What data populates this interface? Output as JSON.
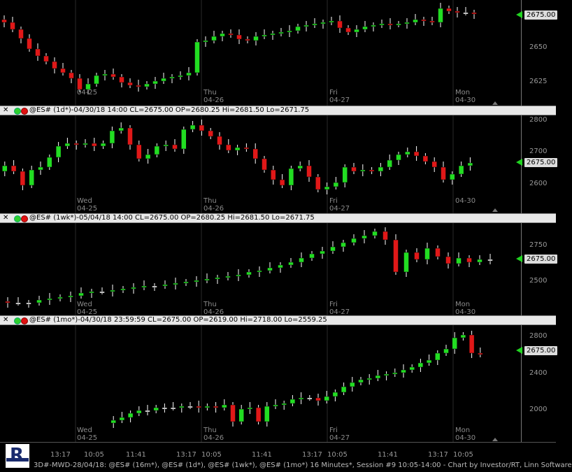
{
  "panes": [
    {
      "id": "p16m",
      "header": "",
      "last_price_label": "2675.00",
      "y_labels": [
        "2650",
        "2625"
      ],
      "date_labels": [
        {
          "day": "",
          "date": "04-25"
        },
        {
          "day": "Thu",
          "date": "04-26"
        },
        {
          "day": "Fri",
          "date": "04-27"
        },
        {
          "day": "Mon",
          "date": "04-30"
        }
      ]
    },
    {
      "id": "p1d",
      "header": "@ES# (1d*)-04/30/18 14:00 CL=2675.00 OP=2680.25 Hi=2681.50 Lo=2671.75",
      "last_price_label": "2675.00",
      "y_labels": [
        "2800",
        "2700",
        "2600"
      ],
      "date_labels": [
        {
          "day": "Wed",
          "date": "04-25"
        },
        {
          "day": "Thu",
          "date": "04-26"
        },
        {
          "day": "Fri",
          "date": "04-27"
        },
        {
          "day": "",
          "date": "04-30"
        }
      ]
    },
    {
      "id": "p1wk",
      "header": "@ES# (1wk*)-05/04/18 14:00 CL=2675.00 OP=2680.25 Hi=2681.50 Lo=2671.75",
      "last_price_label": "2675.00",
      "y_labels": [
        "2750",
        "2500"
      ],
      "date_labels": [
        {
          "day": "Wed",
          "date": "04-25"
        },
        {
          "day": "Thu",
          "date": "04-26"
        },
        {
          "day": "Fri",
          "date": "04-27"
        },
        {
          "day": "Mon",
          "date": "04-30"
        }
      ]
    },
    {
      "id": "p1mo",
      "header": "@ES# (1mo*)-04/30/18 23:59:59 CL=2675.00 OP=2619.00 Hi=2718.00 Lo=2559.25",
      "last_price_label": "2675.00",
      "y_labels": [
        "2800",
        "2400",
        "2000"
      ],
      "date_labels": [
        {
          "day": "Wed",
          "date": "04-25"
        },
        {
          "day": "Thu",
          "date": "04-26"
        },
        {
          "day": "Fri",
          "date": "04-27"
        },
        {
          "day": "Mon",
          "date": "04-30"
        }
      ]
    }
  ],
  "time_axis": [
    "13:17",
    "10:05",
    "11:41",
    "13:17",
    "10:05",
    "11:41",
    "13:17",
    "10:05",
    "11:41",
    "13:17",
    "10:05"
  ],
  "status_text": "3D#-MWD-28/04/18: @ES# (16m*), @ES# (1d*), @ES# (1wk*), @ES# (1mo*) 16 Minutes*, Session #9 10:05-14:00 - Chart by Investor/RT, Linn Software",
  "logo_text": "R",
  "colors": {
    "up": "#22dd22",
    "down": "#e01818",
    "neutral": "#ffffff",
    "price_arrow": "#21d421"
  }
}
